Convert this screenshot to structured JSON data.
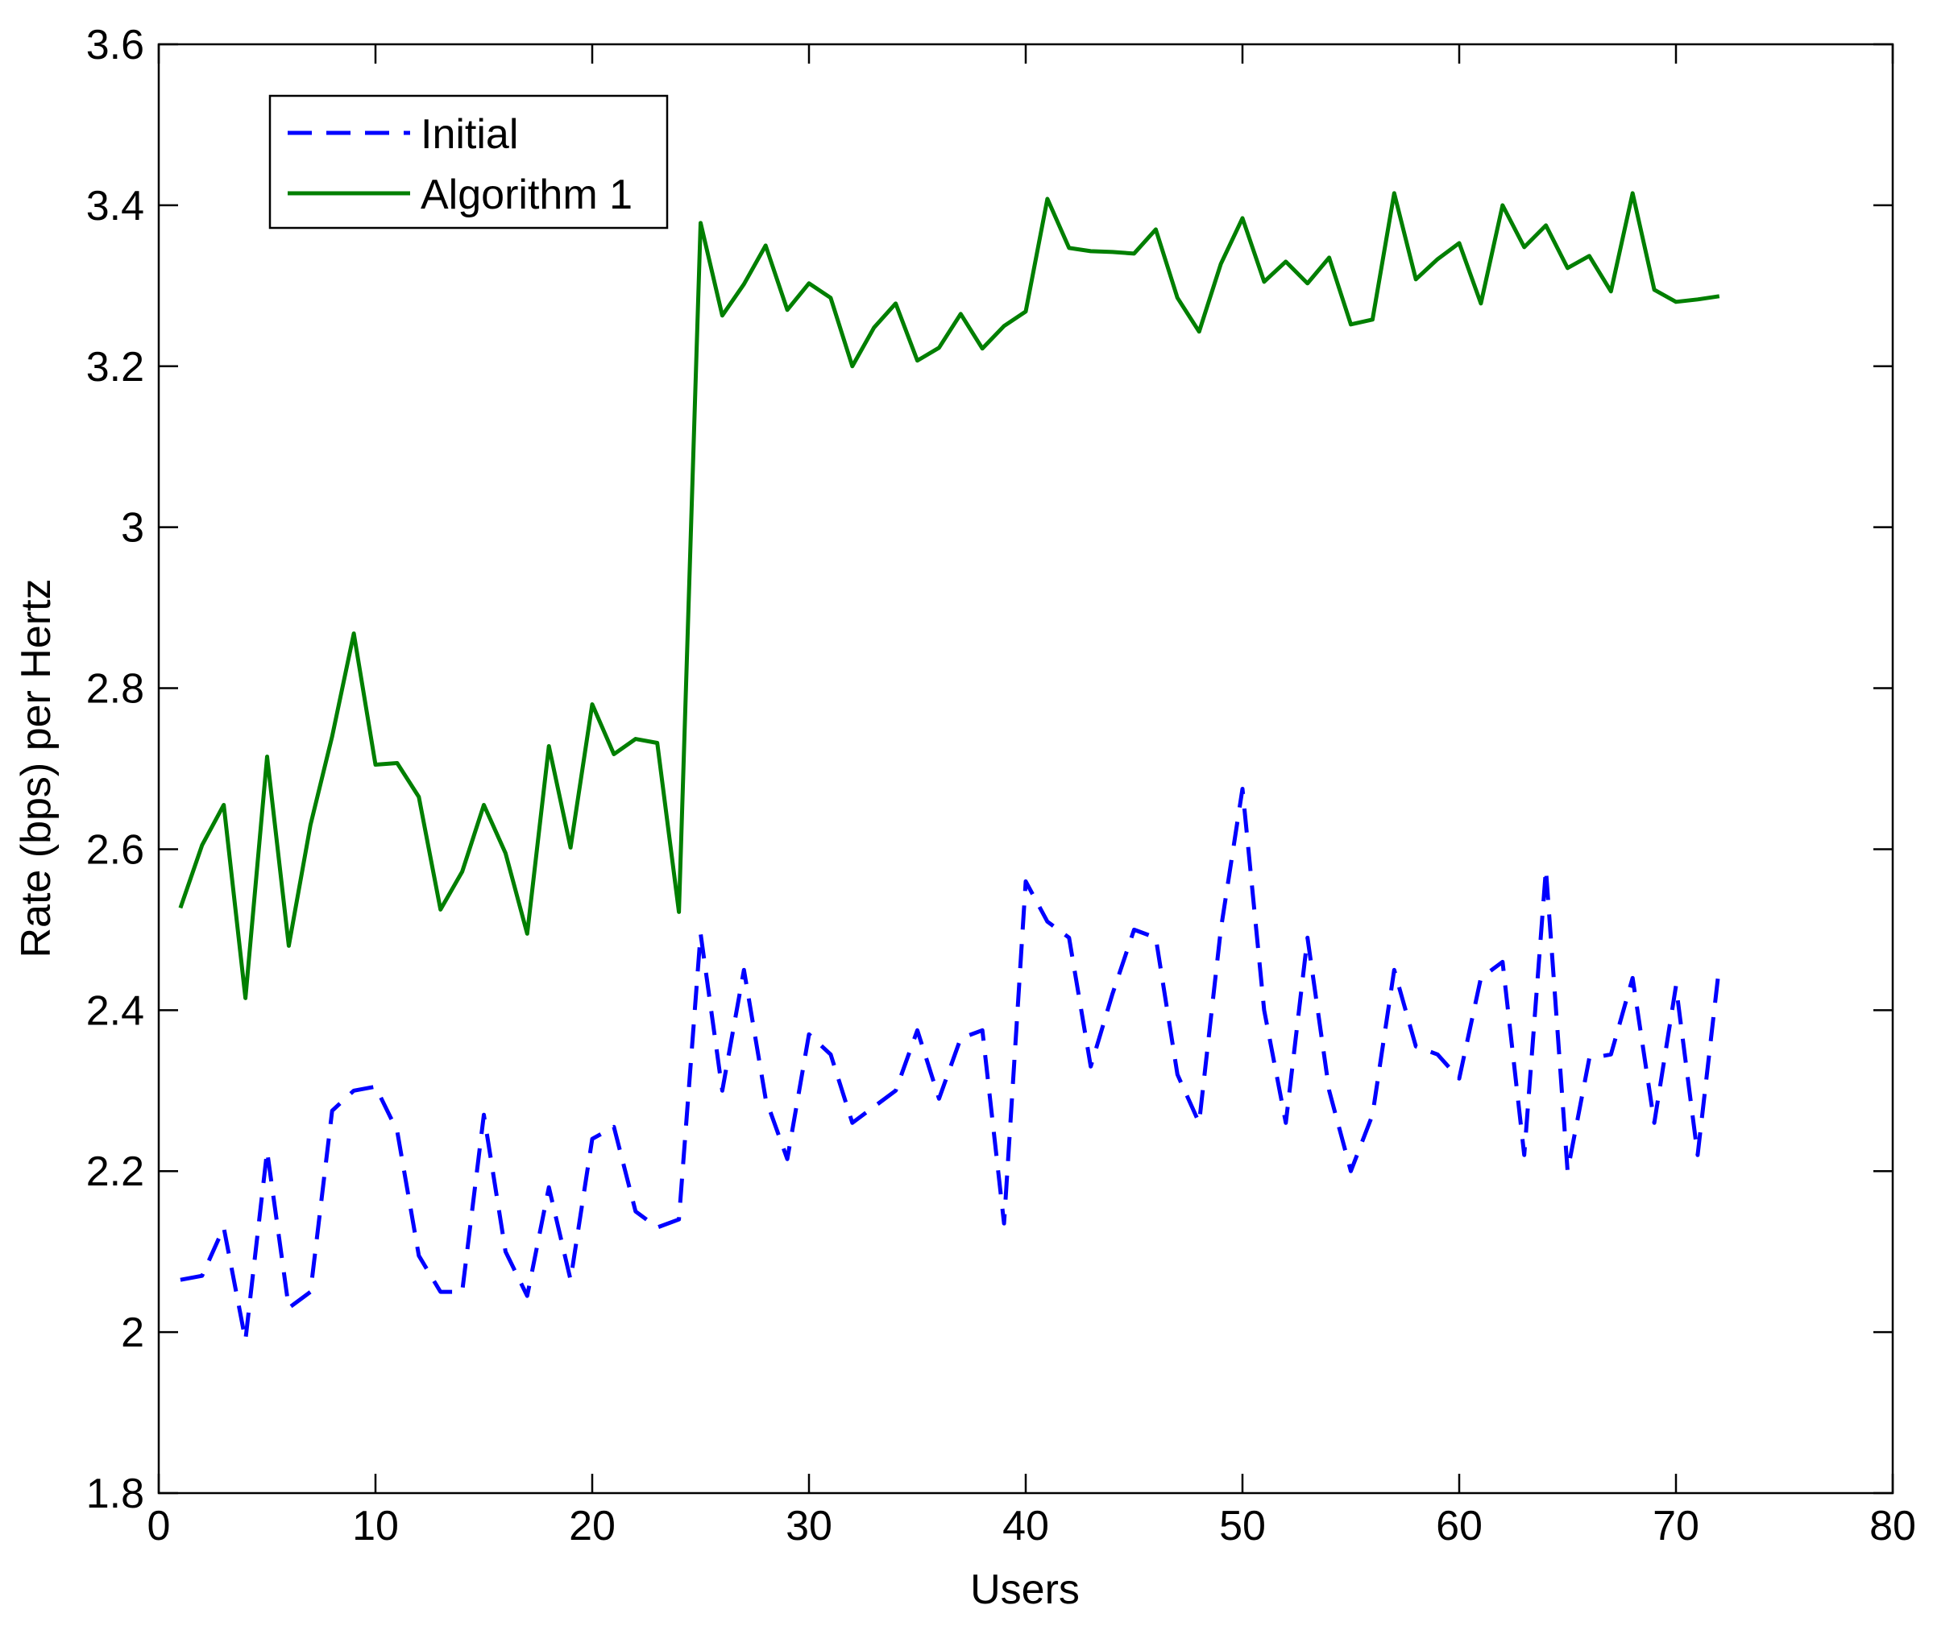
{
  "chart_data": {
    "type": "line",
    "xlabel": "Users",
    "ylabel": "Rate (bps) per Hertz",
    "xlim": [
      0,
      80
    ],
    "ylim": [
      1.8,
      3.6
    ],
    "xticks": [
      0,
      10,
      20,
      30,
      40,
      50,
      60,
      70,
      80
    ],
    "yticks": [
      1.8,
      2,
      2.2,
      2.4,
      2.6,
      2.8,
      3,
      3.2,
      3.4,
      3.6
    ],
    "xtick_labels": [
      "0",
      "10",
      "20",
      "30",
      "40",
      "50",
      "60",
      "70",
      "80"
    ],
    "ytick_labels": [
      "1.8",
      "2",
      "2.2",
      "2.4",
      "2.6",
      "2.8",
      "3",
      "3.2",
      "3.4",
      "3.6"
    ],
    "grid": false,
    "legend_position": "top-left",
    "x": [
      1,
      2,
      3,
      4,
      5,
      6,
      7,
      8,
      9,
      10,
      11,
      12,
      13,
      14,
      15,
      16,
      17,
      18,
      19,
      20,
      21,
      22,
      23,
      24,
      25,
      26,
      27,
      28,
      29,
      30,
      31,
      32,
      33,
      34,
      35,
      36,
      37,
      38,
      39,
      40,
      41,
      42,
      43,
      44,
      45,
      46,
      47,
      48,
      49,
      50,
      51,
      52,
      53,
      54,
      55,
      56,
      57,
      58,
      59,
      60,
      61,
      62,
      63,
      64,
      65,
      66,
      67,
      68,
      69,
      70,
      71,
      72
    ],
    "series": [
      {
        "name": "Initial",
        "style": "dashed",
        "color": "#0000ff",
        "values": [
          2.065,
          2.07,
          2.13,
          1.99,
          2.225,
          2.03,
          2.05,
          2.275,
          2.3,
          2.305,
          2.25,
          2.095,
          2.05,
          2.05,
          2.27,
          2.1,
          2.045,
          2.18,
          2.065,
          2.24,
          2.255,
          2.15,
          2.13,
          2.14,
          2.495,
          2.3,
          2.45,
          2.29,
          2.215,
          2.37,
          2.345,
          2.26,
          2.28,
          2.3,
          2.375,
          2.29,
          2.365,
          2.375,
          2.135,
          2.56,
          2.51,
          2.49,
          2.33,
          2.42,
          2.5,
          2.49,
          2.32,
          2.26,
          2.5,
          2.675,
          2.4,
          2.26,
          2.49,
          2.3,
          2.2,
          2.27,
          2.45,
          2.355,
          2.345,
          2.315,
          2.44,
          2.46,
          2.22,
          2.575,
          2.2,
          2.34,
          2.345,
          2.44,
          2.26,
          2.43,
          2.22,
          2.455
        ]
      },
      {
        "name": "Algorithm 1",
        "style": "solid",
        "color": "#007f00",
        "values": [
          2.527,
          2.605,
          2.655,
          2.415,
          2.715,
          2.48,
          2.63,
          2.74,
          2.868,
          2.705,
          2.707,
          2.665,
          2.525,
          2.572,
          2.655,
          2.595,
          2.495,
          2.728,
          2.602,
          2.78,
          2.718,
          2.737,
          2.732,
          2.522,
          3.378,
          3.263,
          3.302,
          3.35,
          3.27,
          3.303,
          3.285,
          3.2,
          3.248,
          3.278,
          3.207,
          3.223,
          3.265,
          3.222,
          3.25,
          3.268,
          3.408,
          3.347,
          3.343,
          3.342,
          3.34,
          3.37,
          3.285,
          3.243,
          3.327,
          3.384,
          3.305,
          3.33,
          3.303,
          3.335,
          3.252,
          3.258,
          3.415,
          3.308,
          3.333,
          3.353,
          3.278,
          3.4,
          3.348,
          3.375,
          3.322,
          3.337,
          3.293,
          3.415,
          3.295,
          3.28,
          3.283,
          3.287
        ]
      }
    ]
  }
}
